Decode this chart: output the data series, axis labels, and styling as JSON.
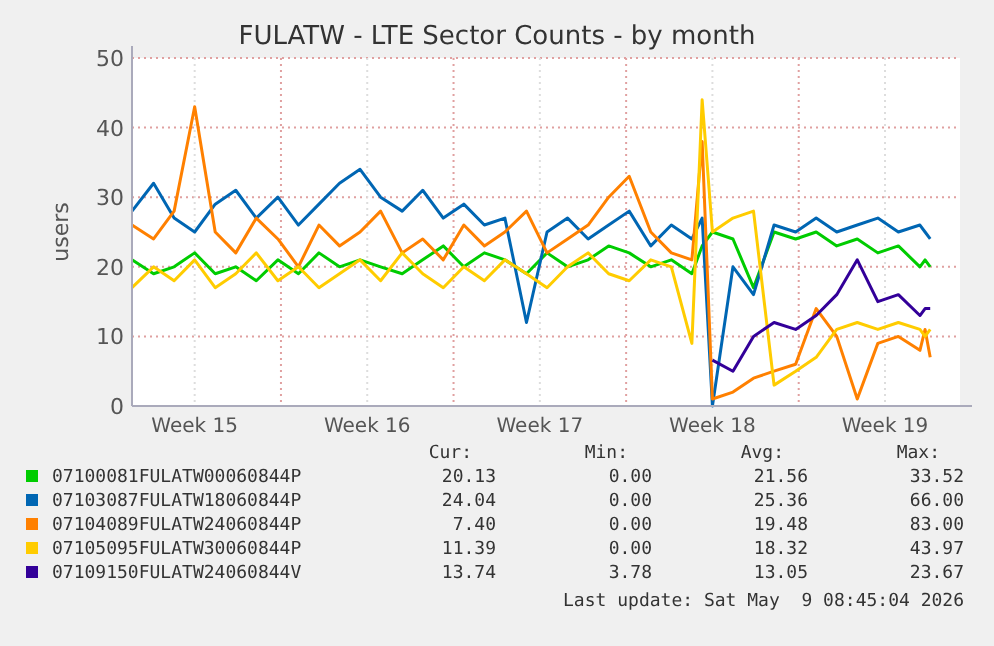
{
  "chart_data": {
    "type": "line",
    "title": "FULATW - LTE Sector Counts - by month",
    "ylabel": "users",
    "x": [
      "2026-04-06T23:00",
      "2026-04-07T20:00",
      "2026-04-08T16:00",
      "2026-04-09T12:00",
      "2026-04-10T08:00",
      "2026-04-11T04:00",
      "2026-04-12T00:00",
      "2026-04-12T21:00",
      "2026-04-13T17:00",
      "2026-04-14T13:00",
      "2026-04-15T09:00",
      "2026-04-16T05:00",
      "2026-04-17T01:00",
      "2026-04-17T22:00",
      "2026-04-18T18:00",
      "2026-04-19T14:00",
      "2026-04-20T10:00",
      "2026-04-21T06:00",
      "2026-04-22T02:00",
      "2026-04-22T23:00",
      "2026-04-23T19:00",
      "2026-04-24T15:00",
      "2026-04-25T11:00",
      "2026-04-26T07:00",
      "2026-04-27T03:00",
      "2026-04-28T00:00",
      "2026-04-28T20:00",
      "2026-04-29T16:00",
      "2026-04-30T02:00",
      "2026-04-30T12:00",
      "2026-05-01T08:00",
      "2026-05-02T04:00",
      "2026-05-03T00:00",
      "2026-05-03T21:00",
      "2026-05-04T17:00",
      "2026-05-05T13:00",
      "2026-05-06T09:00",
      "2026-05-07T05:00",
      "2026-05-08T01:00",
      "2026-05-08T22:00",
      "2026-05-09T03:00",
      "2026-05-09T08:00"
    ],
    "xlim": [
      "2026-04-06T23:00",
      "2026-05-10T13:00"
    ],
    "xticks": [
      {
        "value": "2026-04-09T12:00",
        "label": "Week 15"
      },
      {
        "value": "2026-04-13T00:00",
        "label": null
      },
      {
        "value": "2026-04-16T12:00",
        "label": "Week 16"
      },
      {
        "value": "2026-04-20T00:00",
        "label": null
      },
      {
        "value": "2026-04-23T12:00",
        "label": "Week 17"
      },
      {
        "value": "2026-04-27T00:00",
        "label": null
      },
      {
        "value": "2026-04-30T12:00",
        "label": "Week 18"
      },
      {
        "value": "2026-05-04T00:00",
        "label": null
      },
      {
        "value": "2026-05-07T12:00",
        "label": "Week 19"
      }
    ],
    "ylim": [
      0,
      50
    ],
    "yticks": [
      0,
      10,
      20,
      30,
      40,
      50
    ],
    "grid": true,
    "legend": "bottom",
    "series": [
      {
        "name": "07100081FULATW00060844P",
        "color": "#00cc00",
        "values": [
          21,
          19,
          20,
          22,
          19,
          20,
          18,
          21,
          19,
          22,
          20,
          21,
          20,
          19,
          21,
          23,
          20,
          22,
          21,
          19,
          22,
          20,
          21,
          23,
          22,
          20,
          21,
          19,
          23,
          25,
          24,
          17,
          25,
          24,
          25,
          23,
          24,
          22,
          23,
          20,
          21,
          20
        ]
      },
      {
        "name": "07103087FULATW18060844P",
        "color": "#0066b3",
        "values": [
          28,
          32,
          27,
          25,
          29,
          31,
          27,
          30,
          26,
          29,
          32,
          34,
          30,
          28,
          31,
          27,
          29,
          26,
          27,
          12,
          25,
          27,
          24,
          26,
          28,
          23,
          26,
          24,
          27,
          0,
          20,
          16,
          26,
          25,
          27,
          25,
          26,
          27,
          25,
          26,
          25,
          24
        ]
      },
      {
        "name": "07104089FULATW24060844P",
        "color": "#ff8000",
        "values": [
          26,
          24,
          28,
          43,
          25,
          22,
          27,
          24,
          20,
          26,
          23,
          25,
          28,
          22,
          24,
          21,
          26,
          23,
          25,
          28,
          22,
          24,
          26,
          30,
          33,
          25,
          22,
          21,
          38,
          1,
          2,
          4,
          5,
          6,
          14,
          10,
          1,
          9,
          10,
          8,
          11,
          7
        ]
      },
      {
        "name": "07105095FULATW30060844P",
        "color": "#ffcc00",
        "values": [
          17,
          20,
          18,
          21,
          17,
          19,
          22,
          18,
          20,
          17,
          19,
          21,
          18,
          22,
          19,
          17,
          20,
          18,
          21,
          19,
          17,
          20,
          22,
          19,
          18,
          21,
          20,
          9,
          44,
          25,
          27,
          28,
          3,
          5,
          7,
          11,
          12,
          11,
          12,
          11,
          10,
          11
        ]
      },
      {
        "name": "07109150FULATW24060844V",
        "color": "#330099",
        "values": [
          null,
          null,
          null,
          null,
          null,
          null,
          null,
          null,
          null,
          null,
          null,
          null,
          null,
          null,
          null,
          null,
          null,
          null,
          null,
          null,
          null,
          null,
          null,
          null,
          null,
          null,
          null,
          null,
          null,
          6.6,
          5,
          10,
          12,
          11,
          13,
          16,
          21,
          15,
          16,
          13,
          14,
          14
        ]
      }
    ],
    "annotations": [
      "Cur:",
      "Min:",
      "Avg:",
      "Max:",
      "20.13",
      "0.00",
      "21.56",
      "33.52",
      "24.04",
      "0.00",
      "25.36",
      "66.00",
      "7.40",
      "0.00",
      "19.48",
      "83.00",
      "11.39",
      "0.00",
      "18.32",
      "43.97",
      "13.74",
      "3.78",
      "13.05",
      "23.67",
      "Last update: Sat May  9 08:45:04 2026"
    ]
  }
}
